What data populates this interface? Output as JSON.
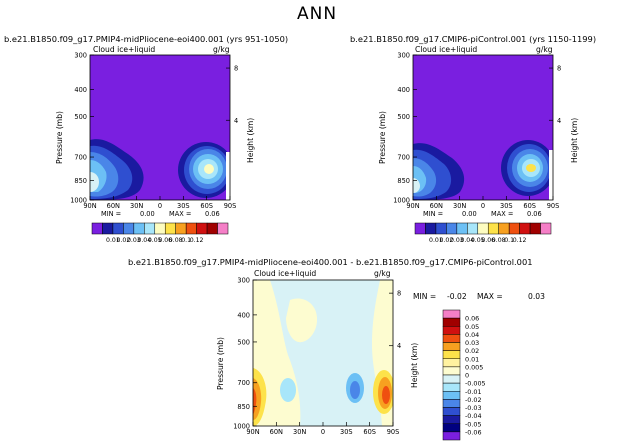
{
  "figure": {
    "title": "ANN"
  },
  "panels": [
    {
      "id": "p1",
      "title": "b.e21.B1850.f09_g17.PMIP4-midPliocene-eoi400.001 (yrs 951-1050)",
      "left_label": "Cloud ice+liquid",
      "right_label": "g/kg",
      "ylabel": "Pressure (mb)",
      "ylabel2": "Height (km)",
      "y_ticks": [
        "300",
        "400",
        "500",
        "700",
        "850",
        "1000"
      ],
      "x_ticks": [
        "90N",
        "60N",
        "30N",
        "0",
        "30S",
        "60S",
        "90S"
      ],
      "height_ticks": [
        "8",
        "4"
      ],
      "min_label": "MIN =",
      "min_value": "0.00",
      "max_label": "MAX =",
      "max_value": "0.06"
    },
    {
      "id": "p2",
      "title": "b.e21.B1850.f09_g17.CMIP6-piControl.001 (yrs 1150-1199)",
      "left_label": "Cloud ice+liquid",
      "right_label": "g/kg",
      "ylabel": "Pressure (mb)",
      "ylabel2": "Height (km)",
      "y_ticks": [
        "300",
        "400",
        "500",
        "700",
        "850",
        "1000"
      ],
      "x_ticks": [
        "90N",
        "60N",
        "30N",
        "0",
        "30S",
        "60S",
        "90S"
      ],
      "height_ticks": [
        "8",
        "4"
      ],
      "min_label": "MIN =",
      "min_value": "0.00",
      "max_label": "MAX =",
      "max_value": "0.06"
    },
    {
      "id": "p3",
      "title": "b.e21.B1850.f09_g17.PMIP4-midPliocene-eoi400.001 - b.e21.B1850.f09_g17.CMIP6-piControl.001",
      "left_label": "Cloud ice+liquid",
      "right_label": "g/kg",
      "ylabel": "Pressure (mb)",
      "ylabel2": "Height (km)",
      "y_ticks": [
        "300",
        "400",
        "500",
        "700",
        "850",
        "1000"
      ],
      "x_ticks": [
        "90N",
        "60N",
        "30N",
        "0",
        "30S",
        "60S",
        "90S"
      ],
      "height_ticks": [
        "8",
        "4"
      ],
      "min_label": "MIN =",
      "min_value": "-0.02",
      "max_label": "MAX =",
      "max_value": "0.03"
    }
  ],
  "colorbar_top": {
    "labels": [
      "0.01",
      "0.02",
      "0.03",
      "0.04",
      "0.05",
      "0.06",
      "0.08",
      "0.1",
      "0.12"
    ],
    "colors": [
      "#7a1fe0",
      "#1a1aa0",
      "#2f4fd0",
      "#4a86e8",
      "#6cc0f5",
      "#a8e6fa",
      "#fdfcc0",
      "#fde24a",
      "#f7a020",
      "#ef5010",
      "#d01010",
      "#a00000",
      "#f57fc7"
    ]
  },
  "colorbar_diff": {
    "labels": [
      "0.06",
      "0.05",
      "0.04",
      "0.03",
      "0.02",
      "0.01",
      "0.005",
      "0",
      "-0.005",
      "-0.01",
      "-0.02",
      "-0.03",
      "-0.04",
      "-0.05",
      "-0.06"
    ],
    "colors": [
      "#f57fc7",
      "#a00000",
      "#d01010",
      "#ef5010",
      "#f7a020",
      "#fde24a",
      "#fff2a0",
      "#fdfcd0",
      "#d8f2f6",
      "#a8e6fa",
      "#6cc0f5",
      "#4a86e8",
      "#2f4fd0",
      "#1a1aa0",
      "#000080",
      "#7a1fe0"
    ]
  },
  "chart_data": [
    {
      "type": "heatmap",
      "title": "b.e21.B1850.f09_g17.PMIP4-midPliocene-eoi400.001 (yrs 951-1050)",
      "variable": "Cloud ice+liquid",
      "units": "g/kg",
      "xlabel": "",
      "ylabel": "Pressure (mb)",
      "x_ticks": [
        "90N",
        "60N",
        "30N",
        "0",
        "30S",
        "60S",
        "90S"
      ],
      "y_ticks": [
        300,
        400,
        500,
        700,
        850,
        1000
      ],
      "min": 0.0,
      "max": 0.06,
      "levels": [
        0.01,
        0.02,
        0.03,
        0.04,
        0.05,
        0.06,
        0.08,
        0.1,
        0.12
      ],
      "features": [
        {
          "lat": 80,
          "pressure": 860,
          "max": 0.06
        },
        {
          "lat": -60,
          "pressure": 860,
          "max": 0.06
        }
      ]
    },
    {
      "type": "heatmap",
      "title": "b.e21.B1850.f09_g17.CMIP6-piControl.001 (yrs 1150-1199)",
      "variable": "Cloud ice+liquid",
      "units": "g/kg",
      "xlabel": "",
      "ylabel": "Pressure (mb)",
      "x_ticks": [
        "90N",
        "60N",
        "30N",
        "0",
        "30S",
        "60S",
        "90S"
      ],
      "y_ticks": [
        300,
        400,
        500,
        700,
        850,
        1000
      ],
      "min": 0.0,
      "max": 0.06,
      "levels": [
        0.01,
        0.02,
        0.03,
        0.04,
        0.05,
        0.06,
        0.08,
        0.1,
        0.12
      ],
      "features": [
        {
          "lat": 80,
          "pressure": 900,
          "max": 0.06
        },
        {
          "lat": -60,
          "pressure": 850,
          "max": 0.06
        }
      ]
    },
    {
      "type": "heatmap",
      "title": "b.e21.B1850.f09_g17.PMIP4-midPliocene-eoi400.001 - b.e21.B1850.f09_g17.CMIP6-piControl.001",
      "variable": "Cloud ice+liquid",
      "units": "g/kg",
      "xlabel": "",
      "ylabel": "Pressure (mb)",
      "x_ticks": [
        "90N",
        "60N",
        "30N",
        "0",
        "30S",
        "60S",
        "90S"
      ],
      "y_ticks": [
        300,
        400,
        500,
        700,
        850,
        1000
      ],
      "min": -0.02,
      "max": 0.03,
      "levels": [
        -0.06,
        -0.05,
        -0.04,
        -0.03,
        -0.02,
        -0.01,
        -0.005,
        0,
        0.005,
        0.01,
        0.02,
        0.03,
        0.04,
        0.05,
        0.06
      ],
      "features": [
        {
          "lat": 85,
          "pressure": 900,
          "value": 0.03
        },
        {
          "lat": -35,
          "pressure": 880,
          "value": -0.02
        },
        {
          "lat": -85,
          "pressure": 900,
          "value": 0.03
        }
      ]
    }
  ]
}
